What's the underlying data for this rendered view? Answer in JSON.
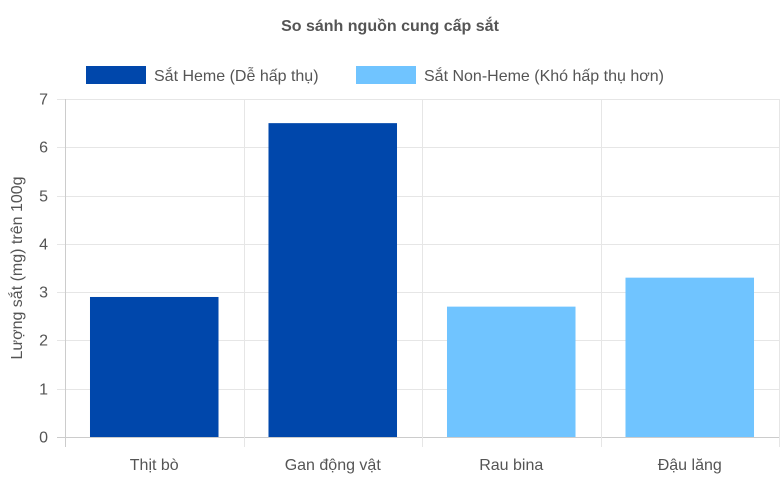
{
  "chart_data": {
    "type": "bar",
    "title": "So sánh nguồn cung cấp sắt",
    "xlabel": "",
    "ylabel": "Lượng sắt (mg) trên 100g",
    "categories": [
      "Thịt bò",
      "Gan động vật",
      "Rau bina",
      "Đậu lăng"
    ],
    "series": [
      {
        "name": "Sắt Heme (Dễ hấp thụ)",
        "color": "#0047AB",
        "values": [
          2.9,
          6.5,
          null,
          null
        ]
      },
      {
        "name": "Sắt Non-Heme (Khó hấp thụ hơn)",
        "color": "#70C4FF",
        "values": [
          null,
          null,
          2.7,
          3.3
        ]
      }
    ],
    "ylim": [
      0,
      7
    ],
    "yticks": [
      0,
      1,
      2,
      3,
      4,
      5,
      6,
      7
    ],
    "grid": true,
    "legend_position": "top"
  }
}
